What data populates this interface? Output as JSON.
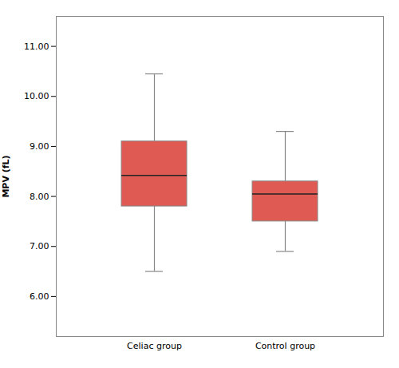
{
  "chart_data": {
    "type": "box",
    "categories": [
      "Celiac group",
      "Control group"
    ],
    "boxes": [
      {
        "whisker_low": 6.5,
        "q1": 7.8,
        "median": 8.42,
        "q3": 9.1,
        "whisker_high": 10.45
      },
      {
        "whisker_low": 6.9,
        "q1": 7.5,
        "median": 8.05,
        "q3": 8.3,
        "whisker_high": 9.3
      }
    ],
    "color": "#E05A54",
    "ylabel": "MPV (fL)",
    "ylim": [
      5.2,
      11.6
    ],
    "yticks": [
      {
        "value": 6,
        "label": "6.00"
      },
      {
        "value": 7,
        "label": "7.00"
      },
      {
        "value": 8,
        "label": "8.00"
      },
      {
        "value": 9,
        "label": "9.00"
      },
      {
        "value": 10,
        "label": "10.00"
      },
      {
        "value": 11,
        "label": "11.00"
      }
    ]
  }
}
